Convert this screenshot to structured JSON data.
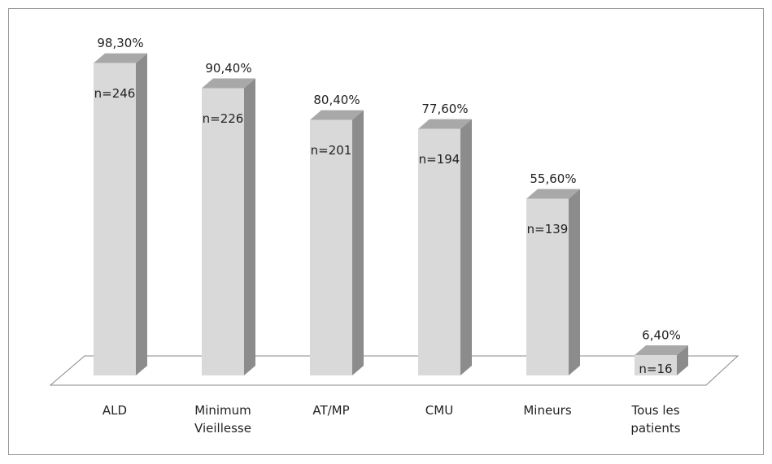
{
  "chart_data": {
    "type": "bar3d",
    "categories": [
      "ALD",
      "Minimum Vieillesse",
      "AT/MP",
      "CMU",
      "Mineurs",
      "Tous les patients"
    ],
    "values": [
      98.3,
      90.4,
      80.4,
      77.6,
      55.6,
      6.4
    ],
    "value_labels": [
      "98,30%",
      "90,40%",
      "80,40%",
      "77,60%",
      "55,60%",
      "6,40%"
    ],
    "counts": [
      246,
      226,
      201,
      194,
      139,
      16
    ],
    "count_labels": [
      "n=246",
      "n=226",
      "n=201",
      "n=194",
      "n=139",
      "n=16"
    ],
    "ylim": [
      0,
      100
    ],
    "colors": {
      "front": "#d9d9d9",
      "side": "#8c8c8c",
      "top": "#a8a8a8"
    }
  }
}
